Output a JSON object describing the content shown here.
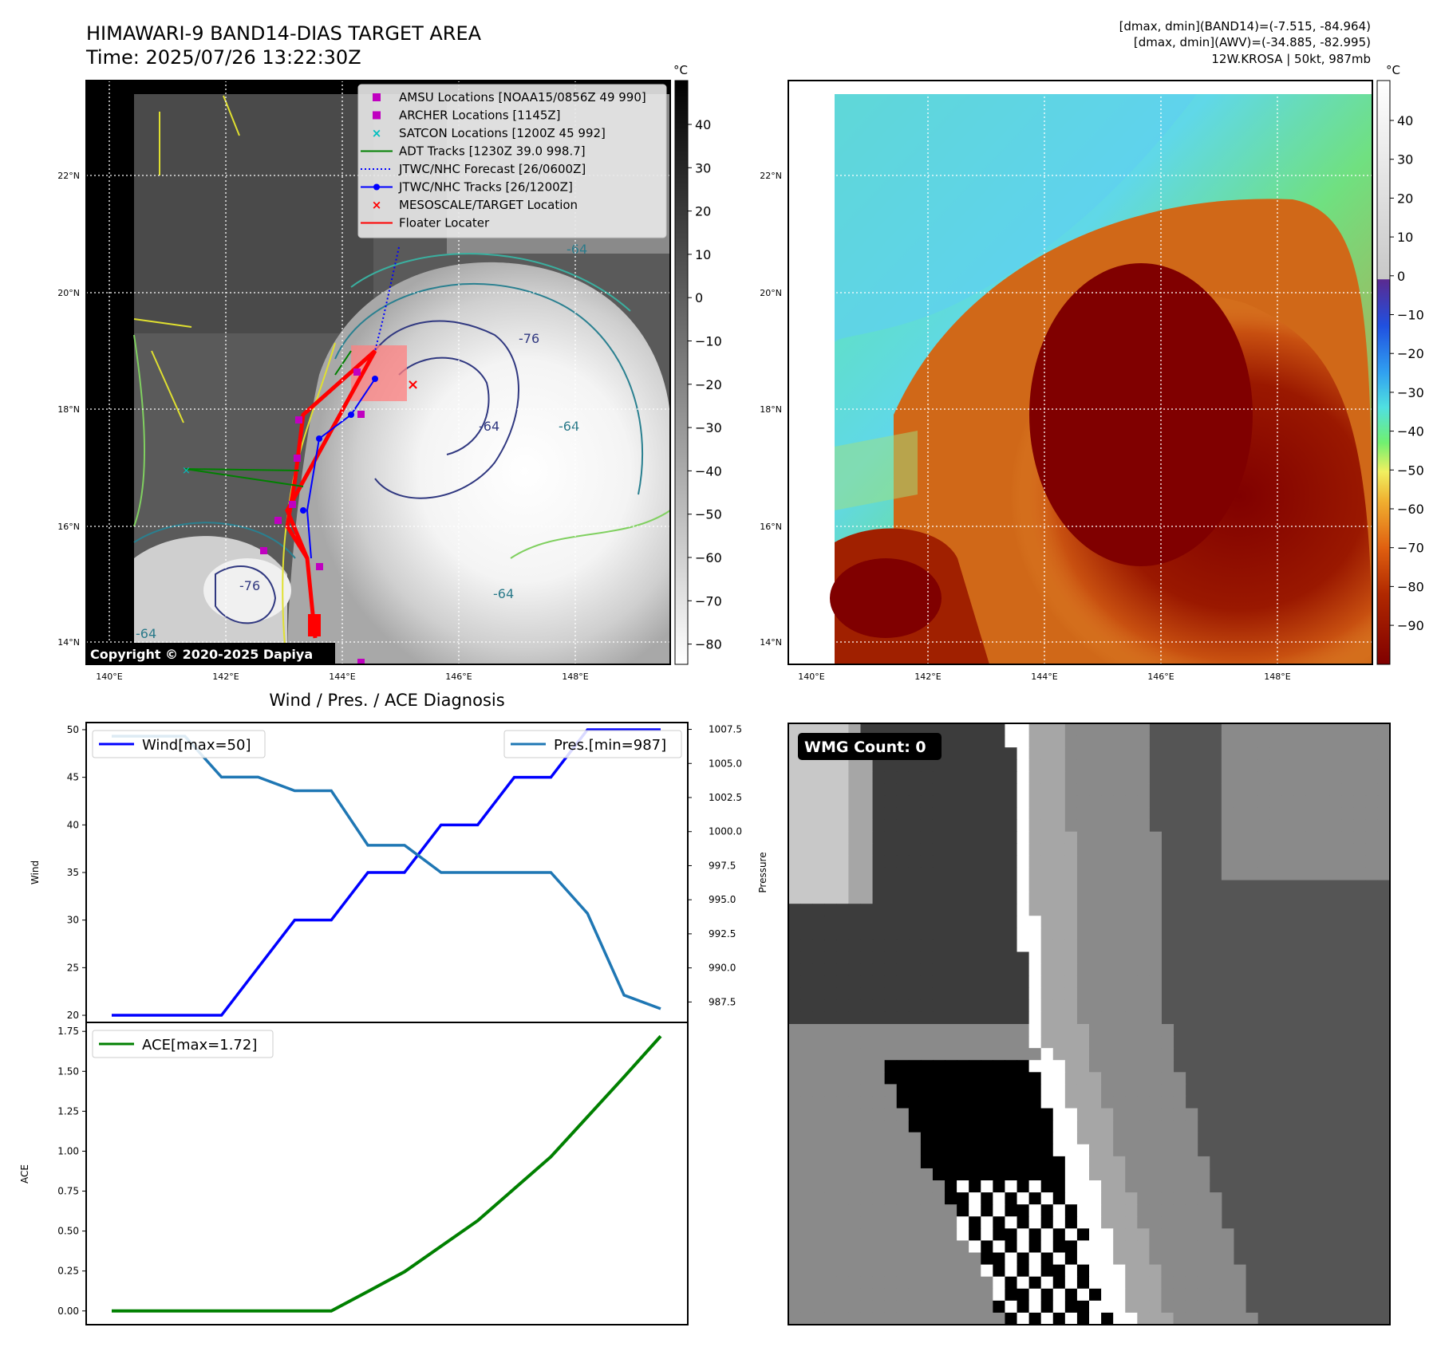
{
  "header": {
    "title_line1": "HIMAWARI-9 BAND14-DIAS TARGET AREA",
    "title_line2": "Time: 2025/07/26 13:22:30Z",
    "info_line1": "[dmax, dmin](BAND14)=(-7.515, -84.964)",
    "info_line2": "[dmax, dmin](AWV)=(-34.885, -82.995)",
    "info_line3": "12W.KROSA | 50kt, 987mb"
  },
  "map": {
    "lon_ticks": [
      "140°E",
      "142°E",
      "144°E",
      "146°E",
      "148°E"
    ],
    "lat_ticks": [
      "22°N",
      "20°N",
      "18°N",
      "16°N",
      "14°N"
    ],
    "copyright": "Copyright © 2020-2025 Dapiya",
    "contour_labels": [
      "-64",
      "-76",
      "-64",
      "-64",
      "-76",
      "-64",
      "-64"
    ],
    "legend": [
      {
        "label": "AMSU Locations [NOAA15/0856Z 49 990]",
        "marker": "square",
        "color": "#c000c0"
      },
      {
        "label": "ARCHER Locations [1145Z]",
        "marker": "square",
        "color": "#c000c0"
      },
      {
        "label": "SATCON Locations [1200Z 45 992]",
        "marker": "x",
        "color": "#00bfbf"
      },
      {
        "label": "ADT Tracks [1230Z 39.0 998.7]",
        "marker": "line",
        "color": "#008000"
      },
      {
        "label": "JTWC/NHC Forecast [26/0600Z]",
        "marker": "dotted",
        "color": "#0000ff"
      },
      {
        "label": "JTWC/NHC Tracks [26/1200Z]",
        "marker": "dotline",
        "color": "#0000ff"
      },
      {
        "label": "MESOSCALE/TARGET Location",
        "marker": "redx",
        "color": "#ff0000"
      },
      {
        "label": "Floater Locater",
        "marker": "line",
        "color": "#ff0000"
      }
    ]
  },
  "colorbar_ir": {
    "unit": "°C",
    "ticks": [
      "40",
      "30",
      "20",
      "10",
      "0",
      "−10",
      "−20",
      "−30",
      "−40",
      "−50",
      "−60",
      "−70",
      "−80"
    ]
  },
  "colorbar_wv": {
    "unit": "°C",
    "ticks": [
      "40",
      "30",
      "20",
      "10",
      "0",
      "−10",
      "−20",
      "−30",
      "−40",
      "−50",
      "−60",
      "−70",
      "−80",
      "−90"
    ]
  },
  "diagnosis": {
    "title": "Wind / Pres. / ACE Diagnosis",
    "wind_axis_label": "Wind",
    "pressure_axis_label": "Pressure",
    "ace_axis_label": "ACE",
    "wind_ticks": [
      "50",
      "45",
      "40",
      "35",
      "30",
      "25",
      "20"
    ],
    "pressure_ticks": [
      "1007.5",
      "1005.0",
      "1002.5",
      "1000.0",
      "997.5",
      "995.0",
      "992.5",
      "990.0",
      "987.5"
    ],
    "ace_ticks": [
      "1.75",
      "1.50",
      "1.25",
      "1.00",
      "0.75",
      "0.50",
      "0.25",
      "0.00"
    ],
    "wind_legend": "Wind[max=50]",
    "pressure_legend": "Pres.[min=987]",
    "ace_legend": "ACE[max=1.72]"
  },
  "wmg": {
    "label": "WMG Count: 0"
  },
  "chart_data": [
    {
      "type": "line",
      "title": "Wind / Pres. / ACE Diagnosis",
      "x": [
        0,
        1,
        2,
        3,
        4,
        5,
        6,
        7,
        8,
        9,
        10,
        11,
        12,
        13,
        14,
        15
      ],
      "series": [
        {
          "name": "Wind[max=50]",
          "color": "#0000ff",
          "axis": "left",
          "values": [
            20,
            20,
            20,
            20,
            25,
            30,
            30,
            35,
            35,
            40,
            40,
            45,
            45,
            50,
            50,
            50
          ]
        },
        {
          "name": "Pres.[min=987]",
          "color": "#1f77b4",
          "axis": "right",
          "values": [
            1007,
            1007,
            1007,
            1004,
            1004,
            1003,
            1003,
            999,
            999,
            997,
            997,
            997,
            997,
            994,
            988,
            987
          ]
        }
      ],
      "ylabel": "Wind",
      "y2label": "Pressure",
      "ylim": [
        19.25,
        50.75
      ],
      "y2lim": [
        986.0,
        1008.0
      ]
    },
    {
      "type": "line",
      "x": [
        0,
        1,
        2,
        3,
        4,
        5,
        6,
        7,
        8,
        9,
        10,
        11,
        12,
        13,
        14,
        15
      ],
      "series": [
        {
          "name": "ACE[max=1.72]",
          "color": "#008000",
          "values": [
            0,
            0,
            0,
            0,
            0,
            0,
            0,
            0.122,
            0.245,
            0.405,
            0.565,
            0.765,
            0.965,
            1.215,
            1.465,
            1.72
          ]
        }
      ],
      "ylabel": "ACE",
      "ylim": [
        -0.086,
        1.806
      ]
    }
  ]
}
